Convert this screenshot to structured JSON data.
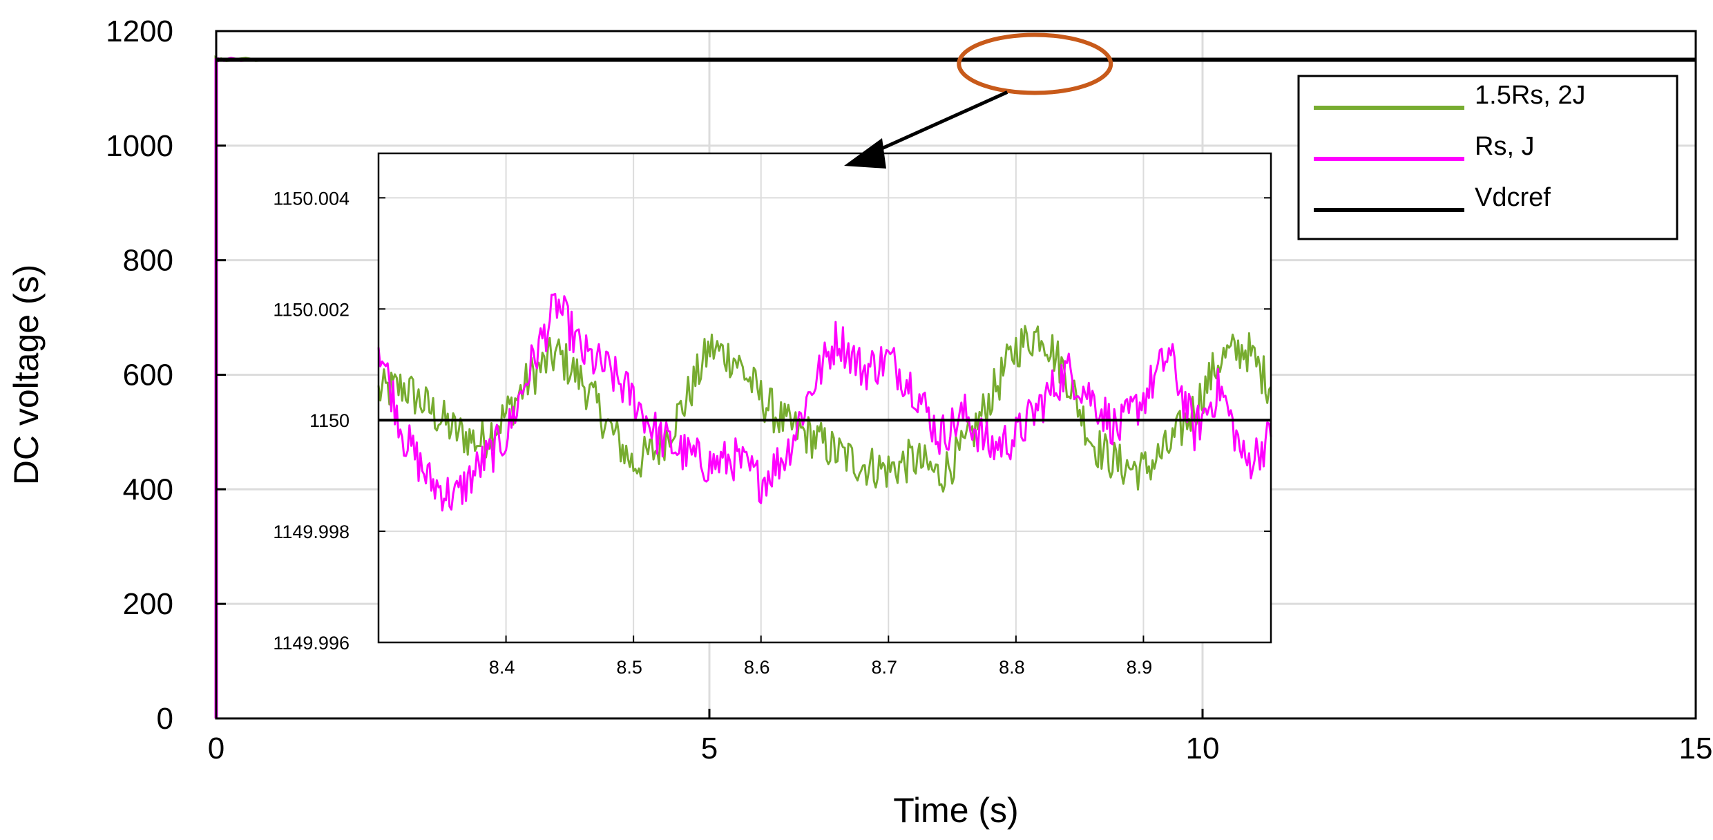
{
  "chart_data": [
    {
      "id": "main",
      "type": "line",
      "xlabel": "Time (s)",
      "ylabel": "DC voltage (s)",
      "xlim": [
        0,
        15
      ],
      "ylim": [
        0,
        1200
      ],
      "xticks": [
        0,
        5,
        10,
        15
      ],
      "yticks": [
        0,
        200,
        400,
        600,
        800,
        1000,
        1200
      ],
      "grid": true,
      "legend": {
        "placement": "top-right",
        "entries": [
          {
            "label": "1.5Rs, 2J",
            "color": "#77ac30"
          },
          {
            "label": "Rs, J",
            "color": "#ff00ff"
          },
          {
            "label": "Vdcref",
            "color": "#000000"
          }
        ]
      },
      "series": [
        {
          "name": "1.5Rs, 2J",
          "color": "#77ac30",
          "x": [
            0,
            0,
            0.01,
            0.05,
            0.1,
            0.2,
            0.3,
            0.4,
            0.5,
            15
          ],
          "y": [
            0,
            1150,
            1148,
            1151,
            1149,
            1150,
            1152,
            1149,
            1150,
            1150
          ]
        },
        {
          "name": "Rs, J",
          "color": "#ff00ff",
          "x": [
            0,
            0,
            0.02,
            0.08,
            0.15,
            0.25,
            0.35,
            15
          ],
          "y": [
            0,
            1150,
            1151,
            1149,
            1152,
            1149,
            1150,
            1150
          ]
        },
        {
          "name": "Vdcref",
          "color": "#000000",
          "x": [
            0,
            15
          ],
          "y": [
            1150,
            1150
          ]
        }
      ],
      "annotation": {
        "type": "ellipse-with-arrow",
        "x": 8.3,
        "y": 1150,
        "color": "#c85a1a",
        "points_to": "inset"
      }
    },
    {
      "id": "inset",
      "type": "line",
      "xlim": [
        8.3,
        9.0
      ],
      "ylim": [
        1149.996,
        1150.0048
      ],
      "xticks": [
        8.4,
        8.5,
        8.6,
        8.7,
        8.8,
        8.9
      ],
      "xtick_labels": [
        "8.4",
        "8.5",
        "8.6",
        "8.7",
        "8.8",
        "8.9"
      ],
      "yticks": [
        1149.996,
        1149.998,
        1150,
        1150.002,
        1150.004
      ],
      "ytick_labels": [
        "1149.996",
        "1149.998",
        "1150",
        "1150.002",
        "1150.004"
      ],
      "grid": true,
      "series": [
        {
          "name": "1.5Rs, 2J",
          "color": "#77ac30",
          "x": [
            8.3,
            8.32,
            8.34,
            8.36,
            8.38,
            8.4,
            8.42,
            8.44,
            8.46,
            8.48,
            8.5,
            8.52,
            8.54,
            8.56,
            8.58,
            8.6,
            8.62,
            8.64,
            8.66,
            8.68,
            8.7,
            8.72,
            8.74,
            8.76,
            8.78,
            8.8,
            8.82,
            8.84,
            8.86,
            8.88,
            8.9,
            8.92,
            8.94,
            8.96,
            8.98,
            9.0
          ],
          "y": [
            1150.0005,
            1150.0006,
            1150.0002,
            1149.9998,
            1149.9996,
            1150.0001,
            1150.0008,
            1150.0012,
            1150.0007,
            1149.9999,
            1149.9992,
            1149.9995,
            1150.0003,
            1150.0013,
            1150.0011,
            1150.0004,
            1149.9999,
            1149.9997,
            1149.9994,
            1149.9992,
            1149.9991,
            1149.9993,
            1149.999,
            1149.9995,
            1150.0004,
            1150.0013,
            1150.0016,
            1150.0008,
            1149.9996,
            1149.9992,
            1149.9991,
            1149.9995,
            1150.0002,
            1150.0011,
            1150.0013,
            1150.0006
          ]
        },
        {
          "name": "Rs, J",
          "color": "#ff00ff",
          "x": [
            8.3,
            8.32,
            8.34,
            8.36,
            8.38,
            8.4,
            8.42,
            8.44,
            8.46,
            8.48,
            8.5,
            8.52,
            8.54,
            8.56,
            8.58,
            8.6,
            8.62,
            8.64,
            8.66,
            8.68,
            8.7,
            8.72,
            8.74,
            8.76,
            8.78,
            8.8,
            8.82,
            8.84,
            8.86,
            8.88,
            8.9,
            8.92,
            8.94,
            8.96,
            8.98,
            9.0
          ],
          "y": [
            1150.0014,
            1149.9997,
            1149.9989,
            1149.9986,
            1149.9992,
            1149.9997,
            1150.001,
            1150.0021,
            1150.0012,
            1150.0009,
            1150.0004,
            1149.9997,
            1149.9994,
            1149.9992,
            1149.9993,
            1149.9989,
            1149.9994,
            1150.0006,
            1150.0015,
            1150.0009,
            1150.0011,
            1150.0006,
            1149.9997,
            1150.0001,
            1149.9995,
            1149.9997,
            1150.0003,
            1150.0009,
            1150.0004,
            1149.9998,
            1150.0004,
            1150.0012,
            1149.9998,
            1150.0006,
            1149.9992,
            1149.9997
          ]
        },
        {
          "name": "Vdcref",
          "color": "#000000",
          "x": [
            8.3,
            9.0
          ],
          "y": [
            1150,
            1150
          ]
        }
      ]
    }
  ]
}
